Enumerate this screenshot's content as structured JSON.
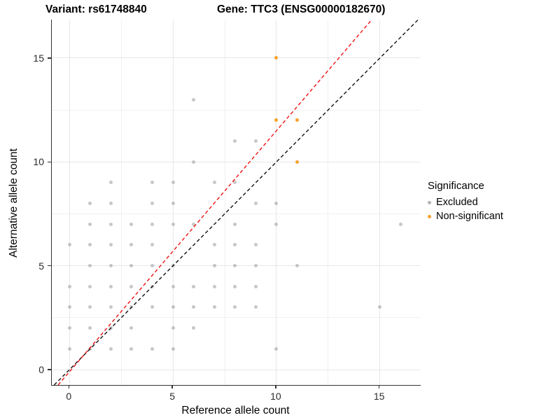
{
  "header": {
    "variant_title": "Variant: rs61748840",
    "gene_title": "Gene: TTC3 (ENSG00000182670)"
  },
  "legend": {
    "title": "Significance",
    "items": [
      {
        "name": "excluded",
        "label": "Excluded",
        "color": "#b3b3b3"
      },
      {
        "name": "non-significant",
        "label": "Non-significant",
        "color": "#F8A22B"
      }
    ]
  },
  "chart_data": {
    "type": "scatter",
    "xlabel": "Reference allele count",
    "ylabel": "Alternative allele count",
    "xlim": [
      -0.9,
      17.0
    ],
    "ylim": [
      -0.75,
      16.85
    ],
    "xticks": [
      0,
      5,
      10,
      15
    ],
    "yticks": [
      0,
      5,
      10,
      15
    ],
    "grid": {
      "major_x": [
        0,
        5,
        10,
        15
      ],
      "minor_x": [
        2.5,
        7.5,
        12.5
      ],
      "major_y": [
        0,
        5,
        10,
        15
      ],
      "minor_y": [
        2.5,
        7.5,
        12.5
      ]
    },
    "legend_position": "right",
    "series": [
      {
        "name": "Excluded",
        "color": "#999999",
        "opacity": 0.55,
        "points": [
          [
            0,
            1
          ],
          [
            0,
            2
          ],
          [
            0,
            3
          ],
          [
            0,
            4
          ],
          [
            0,
            6
          ],
          [
            1,
            1
          ],
          [
            1,
            2
          ],
          [
            1,
            3
          ],
          [
            1,
            4
          ],
          [
            1,
            5
          ],
          [
            1,
            6
          ],
          [
            1,
            7
          ],
          [
            1,
            8
          ],
          [
            2,
            1
          ],
          [
            2,
            2
          ],
          [
            2,
            3
          ],
          [
            2,
            4
          ],
          [
            2,
            5
          ],
          [
            2,
            6
          ],
          [
            2,
            7
          ],
          [
            2,
            8
          ],
          [
            2,
            9
          ],
          [
            3,
            1
          ],
          [
            3,
            2
          ],
          [
            3,
            3
          ],
          [
            3,
            4
          ],
          [
            3,
            5
          ],
          [
            3,
            6
          ],
          [
            3,
            7
          ],
          [
            4,
            1
          ],
          [
            4,
            3
          ],
          [
            4,
            4
          ],
          [
            4,
            5
          ],
          [
            4,
            6
          ],
          [
            4,
            7
          ],
          [
            4,
            8
          ],
          [
            4,
            9
          ],
          [
            5,
            1
          ],
          [
            5,
            2
          ],
          [
            5,
            3
          ],
          [
            5,
            4
          ],
          [
            5,
            5
          ],
          [
            5,
            7
          ],
          [
            5,
            8
          ],
          [
            5,
            9
          ],
          [
            6,
            2
          ],
          [
            6,
            3
          ],
          [
            6,
            4
          ],
          [
            6,
            7
          ],
          [
            6,
            10
          ],
          [
            6,
            13
          ],
          [
            7,
            3
          ],
          [
            7,
            4
          ],
          [
            7,
            5
          ],
          [
            7,
            6
          ],
          [
            7,
            9
          ],
          [
            8,
            3
          ],
          [
            8,
            4
          ],
          [
            8,
            5
          ],
          [
            8,
            6
          ],
          [
            8,
            7
          ],
          [
            8,
            9
          ],
          [
            8,
            11
          ],
          [
            9,
            3
          ],
          [
            9,
            4
          ],
          [
            9,
            5
          ],
          [
            9,
            6
          ],
          [
            9,
            8
          ],
          [
            9,
            11
          ],
          [
            10,
            1
          ],
          [
            10,
            7
          ],
          [
            10,
            8
          ],
          [
            11,
            5
          ],
          [
            15,
            3
          ],
          [
            16,
            7
          ]
        ]
      },
      {
        "name": "Non-significant",
        "color": "#F8A22B",
        "opacity": 1,
        "points": [
          [
            10,
            12
          ],
          [
            10,
            15
          ],
          [
            11,
            10
          ],
          [
            11,
            12
          ]
        ]
      }
    ],
    "lines": [
      {
        "name": "identity-line",
        "color": "#111111",
        "dash": true,
        "from": [
          -0.74,
          -0.74
        ],
        "to": [
          16.85,
          16.85
        ]
      },
      {
        "name": "trend-line",
        "color": "#ee1111",
        "dash": true,
        "from": [
          -0.55,
          -0.74
        ],
        "to": [
          14.61,
          16.85
        ]
      }
    ]
  }
}
